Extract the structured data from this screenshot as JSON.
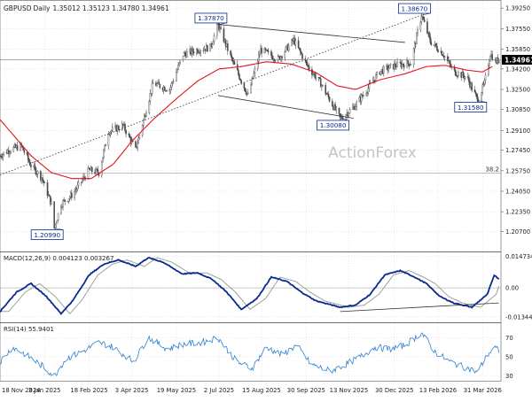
{
  "chart_data": {
    "type": "candlestick",
    "symbol": "GBPUSD",
    "timeframe": "Daily",
    "ohlc_label": "1.35012 1.35123 1.34780 1.34961",
    "watermark": "ActionForex",
    "colors": {
      "background": "#ffffff",
      "grid": "#cfcfcf",
      "candles": "#4a4a4a",
      "price_line": "#1a1a1a",
      "ma_line": "#e0141e",
      "trendline": "#333333",
      "macd_line": "#0a2a8c",
      "signal_line": "#a0a0a0",
      "rsi_line": "#2f7fd0",
      "label_border": "#0a2a8c",
      "label_text": "#0a2a8c",
      "axis_text": "#222222",
      "current_price_bg": "#000000",
      "current_price_text": "#ffffff"
    },
    "price_panel": {
      "ylim": [
        1.1905,
        1.3985
      ],
      "y_ticks": [
        "1.39250",
        "1.37550",
        "1.35850",
        "1.34200",
        "1.32500",
        "1.30850",
        "1.29100",
        "1.27450",
        "1.25750",
        "1.24050",
        "1.22350",
        "1.20700"
      ],
      "current_price": "1.34961",
      "fib_level": {
        "value": 1.2555,
        "label": "38.2"
      },
      "ma_series": [
        [
          "2024-11-18",
          1.3
        ],
        [
          "2024-12-20",
          1.27
        ],
        [
          "2025-01-10",
          1.256
        ],
        [
          "2025-01-31",
          1.251
        ],
        [
          "2025-02-20",
          1.251
        ],
        [
          "2025-03-15",
          1.263
        ],
        [
          "2025-04-03",
          1.282
        ],
        [
          "2025-04-25",
          1.3
        ],
        [
          "2025-05-20",
          1.318
        ],
        [
          "2025-06-10",
          1.332
        ],
        [
          "2025-07-02",
          1.342
        ],
        [
          "2025-07-25",
          1.344
        ],
        [
          "2025-08-20",
          1.348
        ],
        [
          "2025-09-15",
          1.346
        ],
        [
          "2025-10-10",
          1.339
        ],
        [
          "2025-11-01",
          1.328
        ],
        [
          "2025-11-20",
          1.325
        ],
        [
          "2025-12-15",
          1.333
        ],
        [
          "2026-01-10",
          1.338
        ],
        [
          "2026-02-01",
          1.344
        ],
        [
          "2026-02-20",
          1.345
        ],
        [
          "2026-03-15",
          1.341
        ],
        [
          "2026-03-31",
          1.3395
        ],
        [
          "2026-04-10",
          1.344
        ]
      ],
      "price_anchors": [
        [
          "2024-11-18",
          1.27
        ],
        [
          "2024-11-28",
          1.275
        ],
        [
          "2024-12-10",
          1.278
        ],
        [
          "2024-12-20",
          1.262
        ],
        [
          "2024-12-31",
          1.252
        ],
        [
          "2025-01-10",
          1.23
        ],
        [
          "2025-01-13",
          1.2099
        ],
        [
          "2025-01-20",
          1.23
        ],
        [
          "2025-02-01",
          1.238
        ],
        [
          "2025-02-18",
          1.258
        ],
        [
          "2025-02-28",
          1.256
        ],
        [
          "2025-03-10",
          1.29
        ],
        [
          "2025-03-25",
          1.295
        ],
        [
          "2025-04-07",
          1.275
        ],
        [
          "2025-04-25",
          1.33
        ],
        [
          "2025-05-12",
          1.325
        ],
        [
          "2025-05-26",
          1.354
        ],
        [
          "2025-06-10",
          1.358
        ],
        [
          "2025-06-23",
          1.36
        ],
        [
          "2025-07-01",
          1.3787
        ],
        [
          "2025-07-15",
          1.35
        ],
        [
          "2025-08-01",
          1.32
        ],
        [
          "2025-08-14",
          1.358
        ],
        [
          "2025-09-01",
          1.35
        ],
        [
          "2025-09-17",
          1.366
        ],
        [
          "2025-10-01",
          1.345
        ],
        [
          "2025-10-15",
          1.33
        ],
        [
          "2025-11-04",
          1.3008
        ],
        [
          "2025-11-18",
          1.31
        ],
        [
          "2025-12-02",
          1.325
        ],
        [
          "2025-12-15",
          1.34
        ],
        [
          "2025-12-31",
          1.345
        ],
        [
          "2026-01-16",
          1.347
        ],
        [
          "2026-01-27",
          1.3867
        ],
        [
          "2026-02-05",
          1.365
        ],
        [
          "2026-02-18",
          1.355
        ],
        [
          "2026-03-01",
          1.34
        ],
        [
          "2026-03-15",
          1.335
        ],
        [
          "2026-03-26",
          1.3158
        ],
        [
          "2026-04-02",
          1.33
        ],
        [
          "2026-04-08",
          1.355
        ],
        [
          "2026-04-13",
          1.348
        ],
        [
          "2026-04-17",
          1.3496
        ]
      ],
      "annotations": [
        {
          "text": "1.20990",
          "date": "2025-01-13",
          "price": 1.2099,
          "anchor": "below"
        },
        {
          "text": "1.37870",
          "date": "2025-07-01",
          "price": 1.3787,
          "anchor": "above"
        },
        {
          "text": "1.30080",
          "date": "2025-11-04",
          "price": 1.3008,
          "anchor": "below"
        },
        {
          "text": "1.38670",
          "date": "2026-01-27",
          "price": 1.3867,
          "anchor": "above"
        },
        {
          "text": "1.31580",
          "date": "2026-03-26",
          "price": 1.3158,
          "anchor": "below"
        }
      ],
      "trendlines": [
        {
          "style": "dotted",
          "from": [
            "2024-11-18",
            1.254
          ],
          "to": [
            "2026-01-27",
            1.3867
          ]
        },
        {
          "style": "solid",
          "from": [
            "2025-07-01",
            1.379
          ],
          "to": [
            "2026-01-10",
            1.364
          ]
        },
        {
          "style": "solid",
          "from": [
            "2025-07-01",
            1.32
          ],
          "to": [
            "2025-11-18",
            1.301
          ]
        }
      ]
    },
    "macd_panel": {
      "label": "MACD(12,26,9) 0.004123 0.003267",
      "ylim": [
        -0.016,
        0.0165
      ],
      "y_ticks": [
        "0.014734",
        "0.00",
        "-0.013442"
      ],
      "macd_anchors": [
        [
          "2024-11-18",
          -0.011
        ],
        [
          "2024-12-05",
          -0.002
        ],
        [
          "2024-12-20",
          0.002
        ],
        [
          "2025-01-05",
          -0.004
        ],
        [
          "2025-01-20",
          -0.012
        ],
        [
          "2025-02-01",
          -0.006
        ],
        [
          "2025-02-18",
          0.006
        ],
        [
          "2025-03-05",
          0.011
        ],
        [
          "2025-03-20",
          0.013
        ],
        [
          "2025-04-07",
          0.01
        ],
        [
          "2025-04-20",
          0.014
        ],
        [
          "2025-05-05",
          0.012
        ],
        [
          "2025-05-25",
          0.0065
        ],
        [
          "2025-06-10",
          0.007
        ],
        [
          "2025-06-25",
          0.004
        ],
        [
          "2025-07-10",
          -0.002
        ],
        [
          "2025-07-25",
          -0.01
        ],
        [
          "2025-08-10",
          -0.005
        ],
        [
          "2025-08-25",
          0.005
        ],
        [
          "2025-09-10",
          0.003
        ],
        [
          "2025-09-25",
          -0.002
        ],
        [
          "2025-10-10",
          -0.006
        ],
        [
          "2025-11-04",
          -0.009
        ],
        [
          "2025-11-20",
          -0.008
        ],
        [
          "2025-12-05",
          -0.003
        ],
        [
          "2025-12-20",
          0.006
        ],
        [
          "2026-01-05",
          0.008
        ],
        [
          "2026-01-20",
          0.005
        ],
        [
          "2026-02-01",
          0.002
        ],
        [
          "2026-02-15",
          -0.004
        ],
        [
          "2026-03-01",
          -0.007
        ],
        [
          "2026-03-20",
          -0.009
        ],
        [
          "2026-04-05",
          -0.003
        ],
        [
          "2026-04-12",
          0.006
        ],
        [
          "2026-04-17",
          0.0041
        ]
      ],
      "signal_lag_days": 9,
      "trendline": {
        "from": [
          "2025-11-04",
          -0.011
        ],
        "to": [
          "2026-04-17",
          -0.007
        ]
      }
    },
    "rsi_panel": {
      "label": "RSI(14) 55.9401",
      "ylim": [
        25,
        85
      ],
      "y_ticks": [
        "70",
        "50",
        "30"
      ],
      "rsi_anchors": [
        [
          "2024-11-18",
          45
        ],
        [
          "2024-12-01",
          60
        ],
        [
          "2024-12-15",
          52
        ],
        [
          "2025-01-01",
          40
        ],
        [
          "2025-01-13",
          30
        ],
        [
          "2025-01-25",
          48
        ],
        [
          "2025-02-10",
          55
        ],
        [
          "2025-02-28",
          65
        ],
        [
          "2025-03-15",
          60
        ],
        [
          "2025-04-05",
          45
        ],
        [
          "2025-04-20",
          70
        ],
        [
          "2025-05-10",
          58
        ],
        [
          "2025-05-25",
          63
        ],
        [
          "2025-06-15",
          65
        ],
        [
          "2025-07-01",
          70
        ],
        [
          "2025-07-20",
          45
        ],
        [
          "2025-08-05",
          38
        ],
        [
          "2025-08-20",
          60
        ],
        [
          "2025-09-05",
          52
        ],
        [
          "2025-09-20",
          62
        ],
        [
          "2025-10-05",
          42
        ],
        [
          "2025-10-25",
          35
        ],
        [
          "2025-11-10",
          42
        ],
        [
          "2025-11-25",
          50
        ],
        [
          "2025-12-10",
          60
        ],
        [
          "2025-12-25",
          58
        ],
        [
          "2026-01-10",
          62
        ],
        [
          "2026-01-27",
          75
        ],
        [
          "2026-02-10",
          55
        ],
        [
          "2026-02-25",
          45
        ],
        [
          "2026-03-10",
          40
        ],
        [
          "2026-03-26",
          34
        ],
        [
          "2026-04-05",
          52
        ],
        [
          "2026-04-12",
          60
        ],
        [
          "2026-04-17",
          56
        ]
      ]
    },
    "x_axis": {
      "start": "2024-11-18",
      "end": "2026-04-19",
      "ticks": [
        {
          "label": "18 Nov 2024",
          "date": "2024-11-18"
        },
        {
          "label": "3 Jan 2025",
          "date": "2025-01-03"
        },
        {
          "label": "18 Feb 2025",
          "date": "2025-02-18"
        },
        {
          "label": "3 Apr 2025",
          "date": "2025-04-03"
        },
        {
          "label": "19 May 2025",
          "date": "2025-05-19"
        },
        {
          "label": "2 Jul 2025",
          "date": "2025-07-02"
        },
        {
          "label": "15 Aug 2025",
          "date": "2025-08-15"
        },
        {
          "label": "30 Sep 2025",
          "date": "2025-09-30"
        },
        {
          "label": "13 Nov 2025",
          "date": "2025-11-13"
        },
        {
          "label": "30 Dec 2025",
          "date": "2025-12-30"
        },
        {
          "label": "13 Feb 2026",
          "date": "2026-02-13"
        },
        {
          "label": "31 Mar 2026",
          "date": "2026-03-31"
        }
      ]
    }
  }
}
